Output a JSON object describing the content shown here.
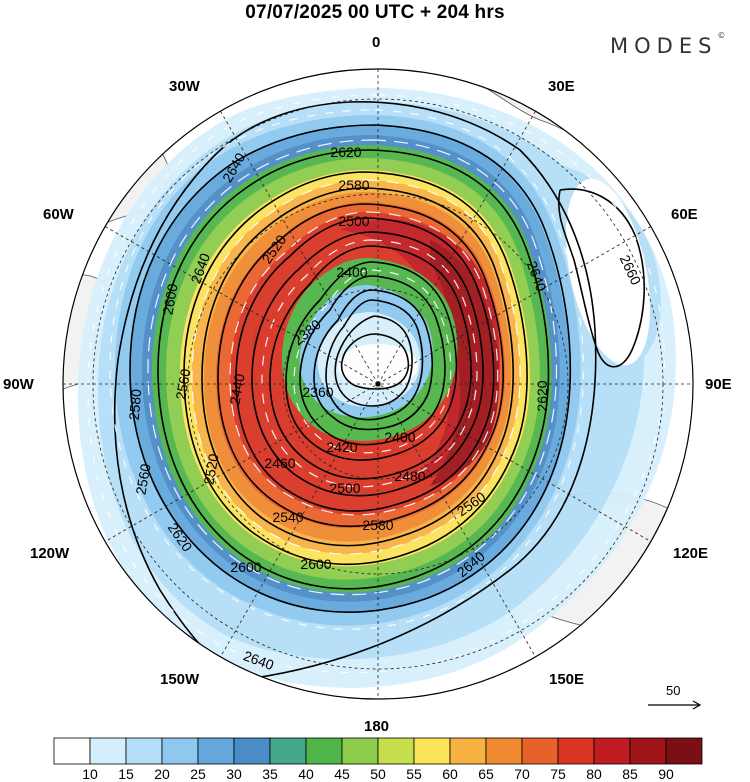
{
  "title": "07/07/2025  00 UTC  + 204 hrs",
  "logo": "MODES",
  "logo_mark": "©",
  "longitude_labels": {
    "lon_0": "0",
    "lon_30e": "30E",
    "lon_60e": "60E",
    "lon_90e": "90E",
    "lon_120e": "120E",
    "lon_150e": "150E",
    "lon_180": "180",
    "lon_150w": "150W",
    "lon_120w": "120W",
    "lon_90w": "90W",
    "lon_60w": "60W",
    "lon_30w": "30W"
  },
  "reference_vector": {
    "value": "50"
  },
  "contour_labels": [
    "2620",
    "2640",
    "2580",
    "2500",
    "2520",
    "2400",
    "2380",
    "2360",
    "2640",
    "2660",
    "2620",
    "2600",
    "2560",
    "2440",
    "2420",
    "2400",
    "2480",
    "2460",
    "2500",
    "2540",
    "2580",
    "2560",
    "2600",
    "2620",
    "2600",
    "2640",
    "2640",
    "2520",
    "2560",
    "2580",
    "2640"
  ],
  "colorbar": {
    "levels": [
      "10",
      "15",
      "20",
      "25",
      "30",
      "35",
      "40",
      "45",
      "50",
      "55",
      "60",
      "65",
      "70",
      "75",
      "80",
      "85",
      "90"
    ],
    "colors": [
      "#ffffff",
      "#d6effc",
      "#b4def7",
      "#8ec8ef",
      "#63a7dd",
      "#4a8cc6",
      "#46a88a",
      "#4fb548",
      "#8ccc4a",
      "#c6df4d",
      "#fbe35a",
      "#f7b242",
      "#f08a30",
      "#e8602a",
      "#d93424",
      "#bf1d22",
      "#9e1419",
      "#7a1014"
    ]
  },
  "map_colors": {
    "land": "#f2f2f2",
    "coast": "#555555",
    "ring_outer": "#9cc9ef",
    "vector": "#ffffff"
  }
}
